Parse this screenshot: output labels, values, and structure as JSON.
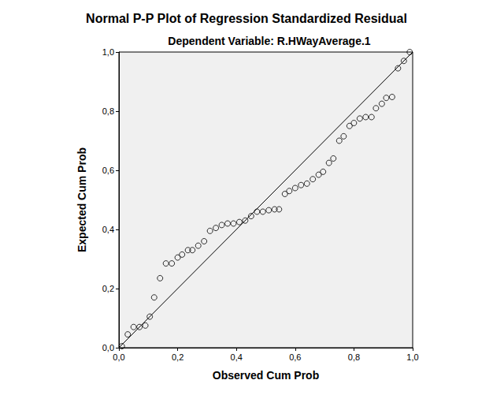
{
  "chart_data": {
    "type": "scatter",
    "title": "Normal P-P Plot of Regression Standardized Residual",
    "subtitle": "Dependent Variable: R.HWayAverage.1",
    "x_label": "Observed Cum Prob",
    "y_label": "Expected Cum Prob",
    "xlim": [
      0,
      1
    ],
    "ylim": [
      0,
      1
    ],
    "xticks": [
      {
        "value": 0,
        "label": "0,0"
      },
      {
        "value": 0.2,
        "label": "0,2"
      },
      {
        "value": 0.4,
        "label": "0,4"
      },
      {
        "value": 0.6,
        "label": "0,6"
      },
      {
        "value": 0.8,
        "label": "0,8"
      },
      {
        "value": 1,
        "label": "1,0"
      }
    ],
    "yticks": [
      {
        "value": 0,
        "label": "0,0"
      },
      {
        "value": 0.2,
        "label": "0,2"
      },
      {
        "value": 0.4,
        "label": "0,4"
      },
      {
        "value": 0.6,
        "label": "0,6"
      },
      {
        "value": 0.8,
        "label": "0,8"
      },
      {
        "value": 1,
        "label": "1,0"
      }
    ],
    "grid": false,
    "series": [
      {
        "type": "scatter",
        "marker": "circle",
        "color": "#000000",
        "x": [
          0.01,
          0.03,
          0.05,
          0.07,
          0.09,
          0.105,
          0.12,
          0.14,
          0.16,
          0.18,
          0.2,
          0.215,
          0.235,
          0.25,
          0.27,
          0.29,
          0.31,
          0.33,
          0.35,
          0.37,
          0.39,
          0.41,
          0.43,
          0.45,
          0.47,
          0.49,
          0.51,
          0.53,
          0.545,
          0.565,
          0.58,
          0.6,
          0.62,
          0.64,
          0.66,
          0.68,
          0.695,
          0.715,
          0.73,
          0.75,
          0.765,
          0.785,
          0.8,
          0.82,
          0.84,
          0.86,
          0.875,
          0.895,
          0.91,
          0.93,
          0.95,
          0.97,
          0.99
        ],
        "values": [
          0.005,
          0.045,
          0.07,
          0.07,
          0.075,
          0.105,
          0.17,
          0.235,
          0.285,
          0.285,
          0.305,
          0.315,
          0.33,
          0.33,
          0.345,
          0.36,
          0.395,
          0.405,
          0.415,
          0.42,
          0.42,
          0.425,
          0.43,
          0.445,
          0.46,
          0.46,
          0.465,
          0.468,
          0.468,
          0.52,
          0.53,
          0.54,
          0.55,
          0.555,
          0.57,
          0.585,
          0.595,
          0.625,
          0.64,
          0.7,
          0.715,
          0.75,
          0.76,
          0.775,
          0.78,
          0.78,
          0.81,
          0.825,
          0.845,
          0.848,
          0.945,
          0.97,
          1.0
        ]
      },
      {
        "type": "line",
        "line_style": "solid",
        "color": "#000000",
        "x": [
          0,
          1
        ],
        "values": [
          0,
          1
        ]
      }
    ]
  }
}
